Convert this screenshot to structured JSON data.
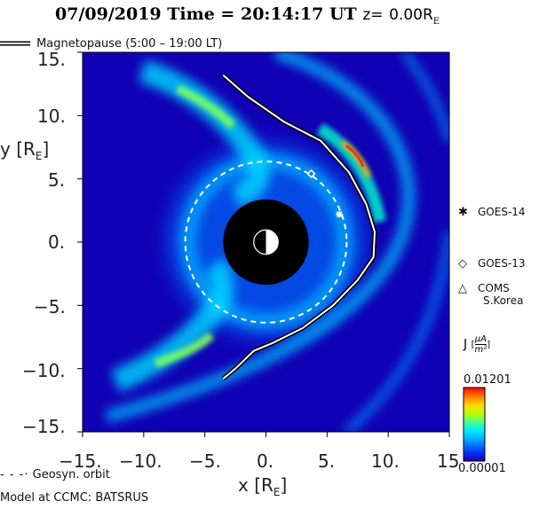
{
  "header": {
    "date": "07/09/2019",
    "time_label": "Time =",
    "time": "20:14:17",
    "time_unit": "UT",
    "z_label": "z=",
    "z_value": "0.00R",
    "z_sub": "E"
  },
  "legend_top": {
    "label": "Magnetopause (5:00 – 19:00 LT)"
  },
  "legend_bottom": {
    "orbit": "Geosyn. orbit",
    "model": "Model at CCMC: BATSRUS"
  },
  "satellites": [
    {
      "name": "GOES-14",
      "symbol": "✱",
      "x": 6.0,
      "y": 2.2
    },
    {
      "name": "GOES-13",
      "symbol": "◇",
      "x": 3.7,
      "y": 5.4
    },
    {
      "name": "COMS",
      "name2": "S.Korea",
      "symbol": "△"
    }
  ],
  "colorbar": {
    "label": "J",
    "unit_num": "μA",
    "unit_den": "m²",
    "max_label": "0.01201",
    "min_label": "0.00001",
    "colors": [
      "#1a00b0",
      "#0033ff",
      "#00a0ff",
      "#00e5ff",
      "#3dff9a",
      "#b6ff00",
      "#ffd800",
      "#ff7a00",
      "#ff0000"
    ]
  },
  "chart_data": {
    "type": "heatmap",
    "xlabel": "x [R",
    "xlabel_sub": "E",
    "ylabel": "y [R",
    "ylabel_sub": "E",
    "xlim": [
      -15,
      15
    ],
    "ylim": [
      -15,
      15
    ],
    "xticks": [
      -15,
      -10,
      -5,
      0,
      5,
      10,
      15
    ],
    "xtick_labels": [
      "−15.",
      "−10.",
      "−5.",
      "0.",
      "5.",
      "10.",
      "15"
    ],
    "yticks": [
      15,
      10,
      5,
      0,
      -5,
      -10,
      -15
    ],
    "ytick_labels": [
      "15.",
      "10.",
      "5.",
      "0.",
      "−5.",
      "−10.",
      "−15."
    ],
    "geosync_radius": 6.6,
    "inner_boundary_radius": 3.5,
    "magnetopause": [
      [
        -3.5,
        13.2
      ],
      [
        -1.5,
        11.5
      ],
      [
        1.5,
        9.5
      ],
      [
        4.5,
        8.0
      ],
      [
        6.8,
        5.5
      ],
      [
        8.2,
        3.0
      ],
      [
        8.9,
        0.8
      ],
      [
        8.8,
        -1.2
      ],
      [
        7.5,
        -3.0
      ],
      [
        5.5,
        -5.0
      ],
      [
        3.0,
        -6.8
      ],
      [
        0.5,
        -8.0
      ],
      [
        -1.0,
        -8.6
      ],
      [
        -2.5,
        -10.0
      ],
      [
        -3.5,
        -10.8
      ]
    ]
  }
}
